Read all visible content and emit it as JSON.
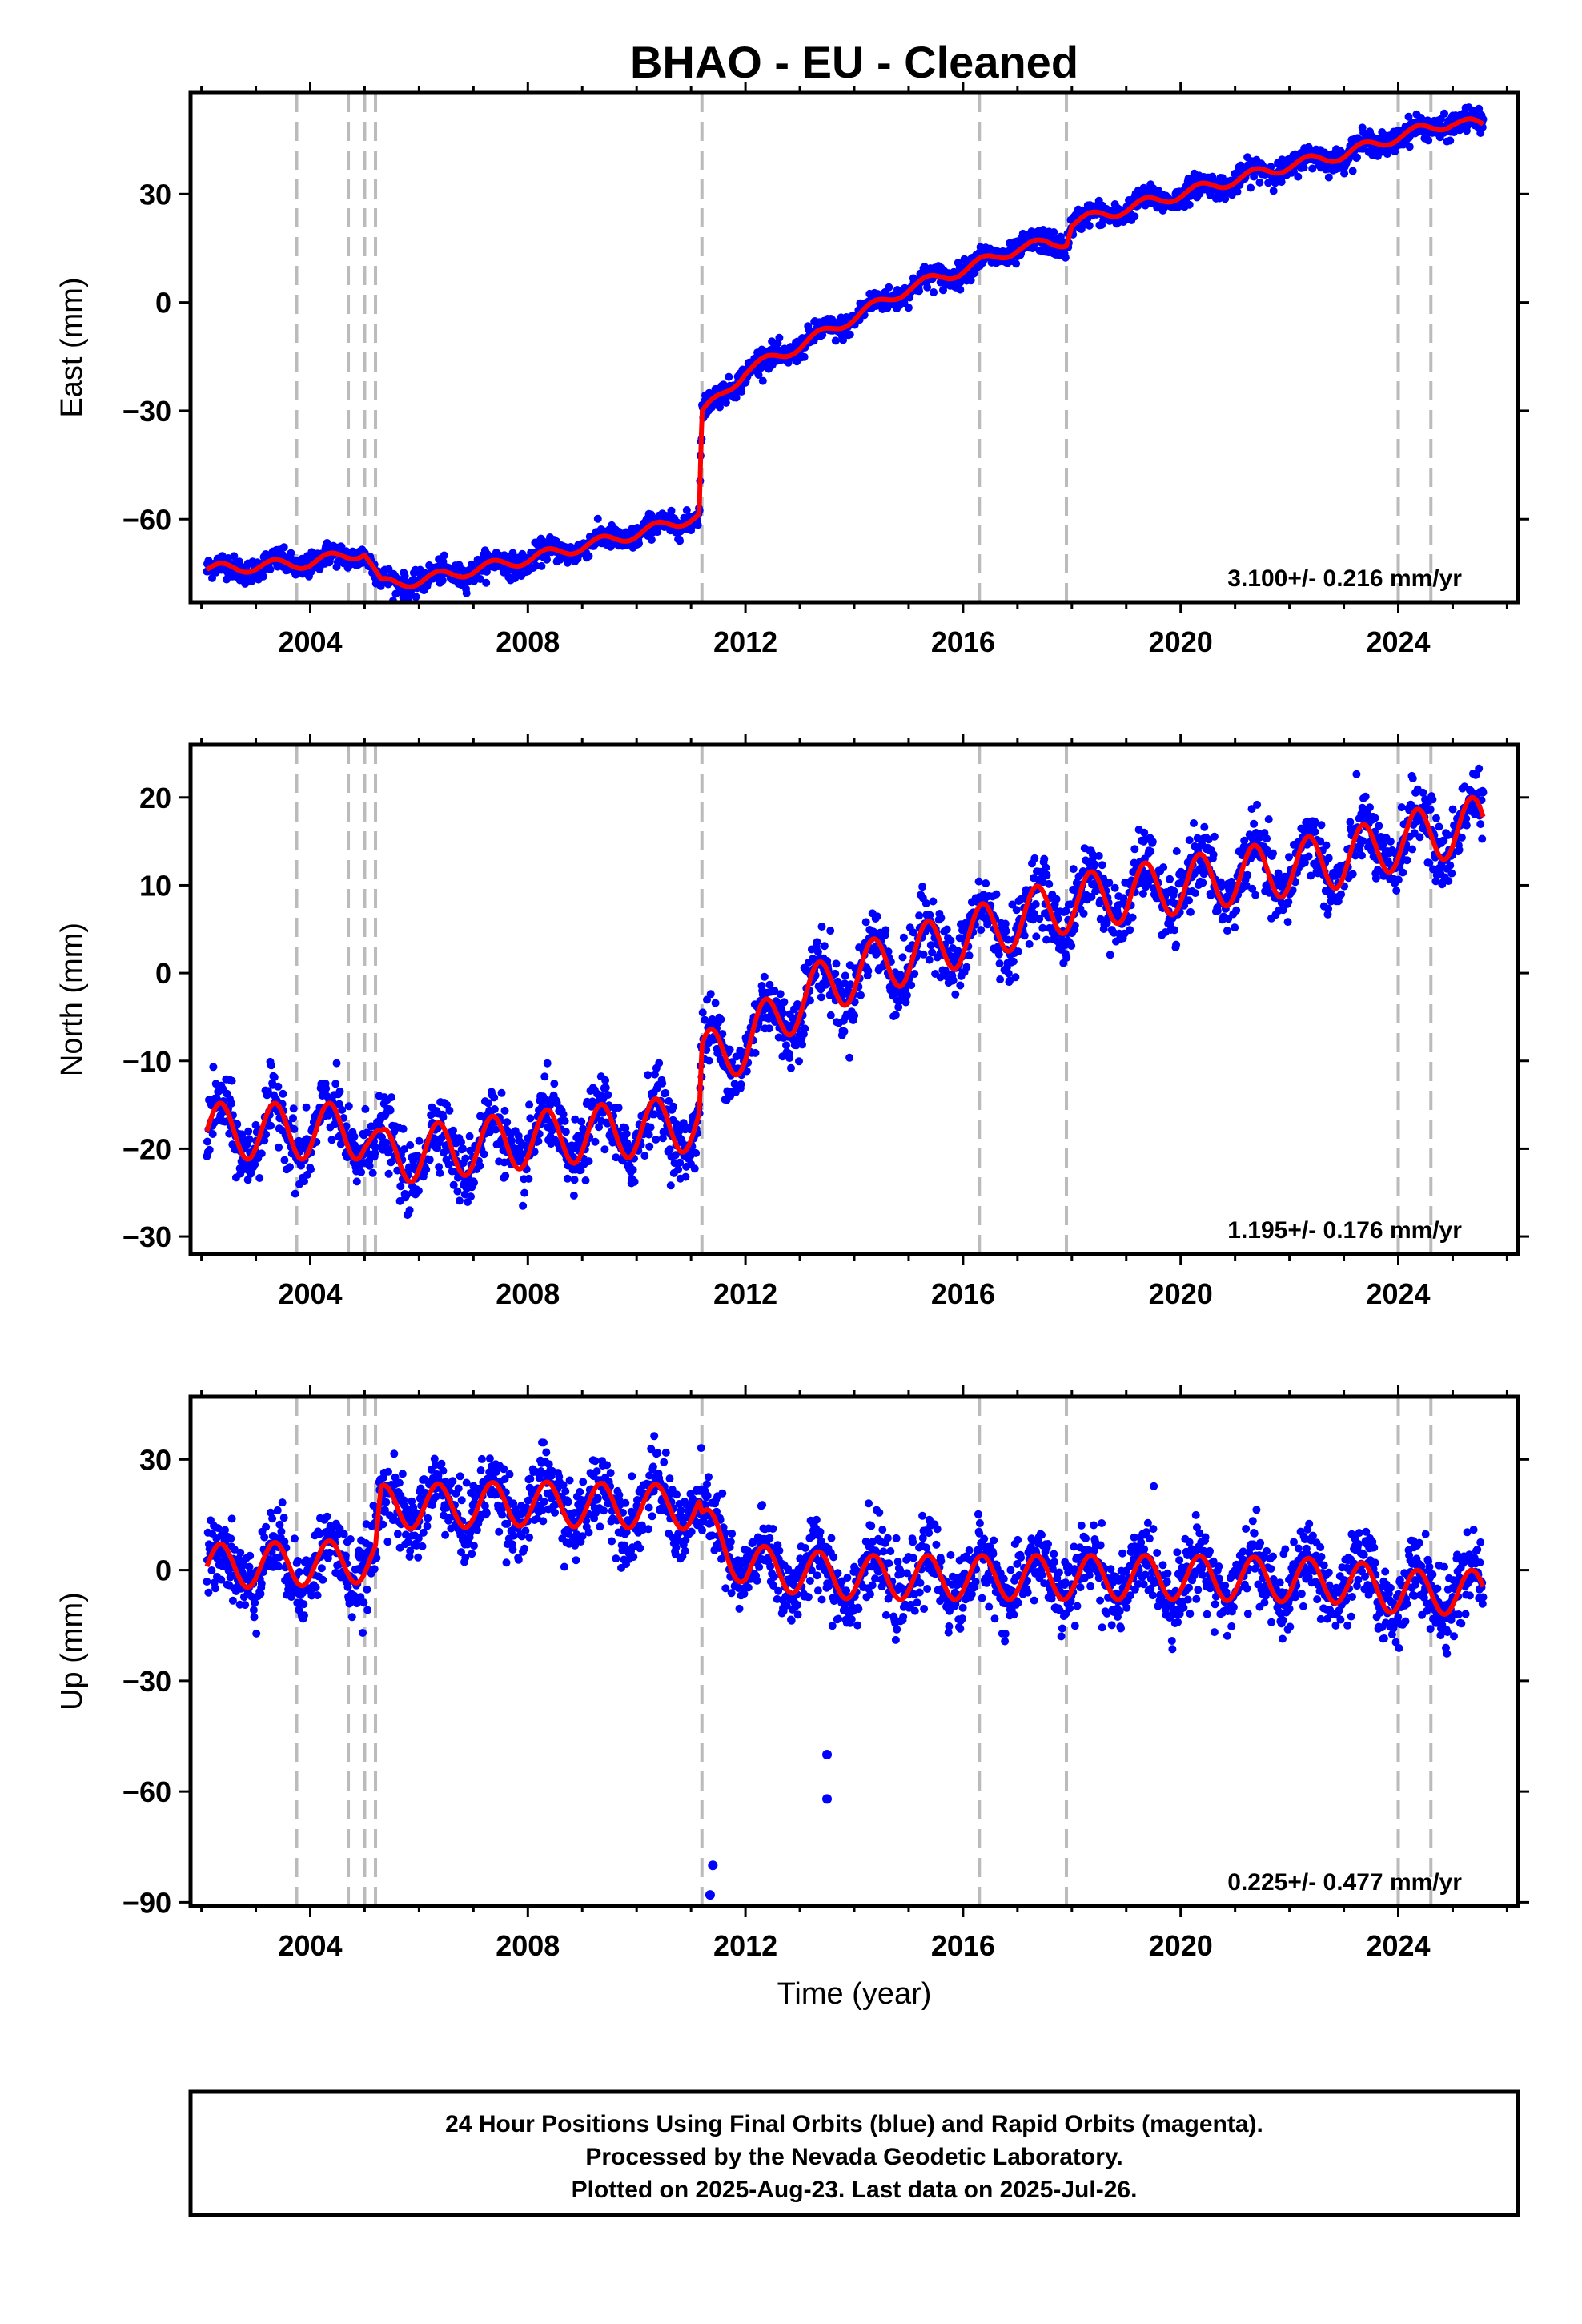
{
  "chart_data": {
    "type": "scatter",
    "title": "BHAO  - EU - Cleaned",
    "xlabel": "Time (year)",
    "x_ticks": [
      "2004",
      "2008",
      "2012",
      "2016",
      "2020",
      "2024"
    ],
    "x_range": [
      2001.8,
      2026.2
    ],
    "event_lines": [
      2003.75,
      2004.7,
      2005.0,
      2005.2,
      2011.2,
      2016.3,
      2017.9,
      2024.0,
      2024.6
    ],
    "colors": {
      "points": "#0000ff",
      "model": "#ff0000",
      "event": "#bbbbbb",
      "frame": "#000000"
    },
    "panels": [
      {
        "id": "east",
        "ylabel": "East (mm)",
        "ylim": [
          -83,
          58
        ],
        "y_ticks": [
          30,
          0,
          -30,
          -60
        ],
        "y_tick_labels": [
          "30",
          "0",
          "−30",
          "−60"
        ],
        "rate": "3.100+/- 0.216 mm/yr",
        "seasonal_amp": 1.5,
        "noise": 1.6,
        "model": [
          [
            2002.1,
            -74
          ],
          [
            2004.0,
            -72
          ],
          [
            2005.0,
            -69
          ],
          [
            2005.3,
            -78
          ],
          [
            2006.0,
            -77
          ],
          [
            2008.0,
            -71
          ],
          [
            2010.0,
            -64
          ],
          [
            2011.15,
            -59
          ],
          [
            2011.2,
            -31
          ],
          [
            2012.0,
            -19
          ],
          [
            2013.0,
            -12
          ],
          [
            2014.0,
            -4
          ],
          [
            2015.0,
            4
          ],
          [
            2016.0,
            9
          ],
          [
            2017.0,
            15
          ],
          [
            2017.9,
            17
          ],
          [
            2018.0,
            22
          ],
          [
            2019.0,
            26
          ],
          [
            2020.0,
            30
          ],
          [
            2021.0,
            34
          ],
          [
            2022.0,
            38
          ],
          [
            2023.0,
            41
          ],
          [
            2024.0,
            46
          ],
          [
            2025.0,
            50
          ],
          [
            2025.5,
            49
          ]
        ]
      },
      {
        "id": "north",
        "ylabel": "North (mm)",
        "ylim": [
          -32,
          26
        ],
        "y_ticks": [
          20,
          10,
          0,
          -10,
          -20,
          -30
        ],
        "y_tick_labels": [
          "20",
          "10",
          "0",
          "−10",
          "−20",
          "−30"
        ],
        "rate": "1.195+/- 0.176 mm/yr",
        "seasonal_amp": 3.2,
        "noise": 1.9,
        "model": [
          [
            2002.1,
            -18
          ],
          [
            2004.0,
            -18
          ],
          [
            2005.0,
            -18
          ],
          [
            2005.3,
            -21
          ],
          [
            2008.0,
            -19
          ],
          [
            2011.15,
            -17
          ],
          [
            2011.2,
            -10
          ],
          [
            2012.0,
            -8
          ],
          [
            2013.0,
            -3
          ],
          [
            2014.0,
            0
          ],
          [
            2015.0,
            2
          ],
          [
            2016.0,
            4
          ],
          [
            2017.0,
            6
          ],
          [
            2018.0,
            8
          ],
          [
            2019.0,
            9
          ],
          [
            2020.0,
            10
          ],
          [
            2021.0,
            11
          ],
          [
            2022.0,
            12
          ],
          [
            2023.0,
            13
          ],
          [
            2024.0,
            15
          ],
          [
            2025.5,
            17
          ]
        ]
      },
      {
        "id": "up",
        "ylabel": "Up (mm)",
        "ylim": [
          -91,
          47
        ],
        "y_ticks": [
          30,
          0,
          -30,
          -60,
          -90
        ],
        "y_tick_labels": [
          "30",
          "0",
          "−30",
          "−60",
          "−90"
        ],
        "rate": "0.225+/- 0.477 mm/yr",
        "seasonal_amp": 6.0,
        "noise": 5.0,
        "model": [
          [
            2002.1,
            1
          ],
          [
            2004.5,
            2
          ],
          [
            2005.2,
            3
          ],
          [
            2005.3,
            17
          ],
          [
            2008.0,
            18
          ],
          [
            2011.15,
            17
          ],
          [
            2011.2,
            12
          ],
          [
            2011.8,
            4
          ],
          [
            2012.0,
            1
          ],
          [
            2014.0,
            -2
          ],
          [
            2016.0,
            -2
          ],
          [
            2020.0,
            -2
          ],
          [
            2023.0,
            -3
          ],
          [
            2024.0,
            -6
          ],
          [
            2025.5,
            -6
          ]
        ],
        "outliers": [
          [
            2011.35,
            -88
          ],
          [
            2011.4,
            -80
          ],
          [
            2013.5,
            -50
          ],
          [
            2013.5,
            -62
          ]
        ]
      }
    ]
  },
  "footer": {
    "line1": "24 Hour Positions Using Final Orbits (blue) and Rapid Orbits (magenta).",
    "line2": "Processed by the Nevada Geodetic Laboratory.",
    "line3": "Plotted on 2025-Aug-23. Last data on 2025-Jul-26."
  }
}
